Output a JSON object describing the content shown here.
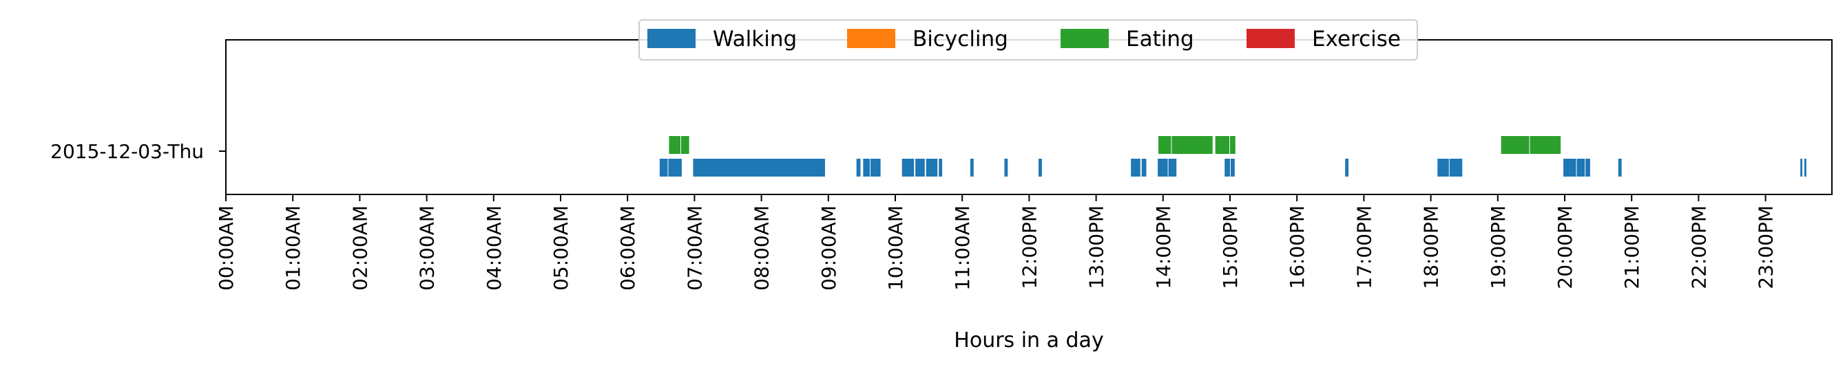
{
  "chart_data": {
    "type": "broken_barh",
    "title": "",
    "xlabel": "Hours in a day",
    "ylabel": "",
    "xlim": [
      0,
      24
    ],
    "y_categories": [
      "2015-12-03-Thu"
    ],
    "x_tick_labels": [
      "00:00AM",
      "01:00AM",
      "02:00AM",
      "03:00AM",
      "04:00AM",
      "05:00AM",
      "06:00AM",
      "07:00AM",
      "08:00AM",
      "09:00AM",
      "10:00AM",
      "11:00AM",
      "12:00PM",
      "13:00PM",
      "14:00PM",
      "15:00PM",
      "16:00PM",
      "17:00PM",
      "18:00PM",
      "19:00PM",
      "20:00PM",
      "21:00PM",
      "22:00PM",
      "23:00PM"
    ],
    "legend": {
      "location": "upper center",
      "entries": [
        {
          "label": "Walking",
          "color": "#1f77b4"
        },
        {
          "label": "Bicycling",
          "color": "#ff7f0e"
        },
        {
          "label": "Eating",
          "color": "#2ca02c"
        },
        {
          "label": "Exercise",
          "color": "#d62728"
        }
      ]
    },
    "series": [
      {
        "name": "Walking",
        "color": "#1f77b4",
        "row": "lower",
        "intervals": [
          [
            6.48,
            6.6
          ],
          [
            6.61,
            6.81
          ],
          [
            6.98,
            8.95
          ],
          [
            9.42,
            9.48
          ],
          [
            9.52,
            9.62
          ],
          [
            9.63,
            9.78
          ],
          [
            10.1,
            10.28
          ],
          [
            10.3,
            10.44
          ],
          [
            10.46,
            10.63
          ],
          [
            10.65,
            10.7
          ],
          [
            11.12,
            11.17
          ],
          [
            11.63,
            11.68
          ],
          [
            12.14,
            12.19
          ],
          [
            13.52,
            13.66
          ],
          [
            13.68,
            13.75
          ],
          [
            13.92,
            14.07
          ],
          [
            14.08,
            14.2
          ],
          [
            14.92,
            15.0
          ],
          [
            15.01,
            15.07
          ],
          [
            16.72,
            16.77
          ],
          [
            18.1,
            18.27
          ],
          [
            18.28,
            18.47
          ],
          [
            19.98,
            20.17
          ],
          [
            20.18,
            20.3
          ],
          [
            20.31,
            20.38
          ],
          [
            20.8,
            20.85
          ],
          [
            23.52,
            23.55
          ],
          [
            23.58,
            23.61
          ]
        ]
      },
      {
        "name": "Bicycling",
        "color": "#ff7f0e",
        "row": "upper",
        "intervals": []
      },
      {
        "name": "Eating",
        "color": "#2ca02c",
        "row": "upper",
        "intervals": [
          [
            6.62,
            6.79
          ],
          [
            6.8,
            6.92
          ],
          [
            13.93,
            14.12
          ],
          [
            14.13,
            14.74
          ],
          [
            14.78,
            14.99
          ],
          [
            15.0,
            15.08
          ],
          [
            19.05,
            19.47
          ],
          [
            19.48,
            19.94
          ]
        ]
      },
      {
        "name": "Exercise",
        "color": "#d62728",
        "row": "upper",
        "intervals": []
      }
    ]
  }
}
